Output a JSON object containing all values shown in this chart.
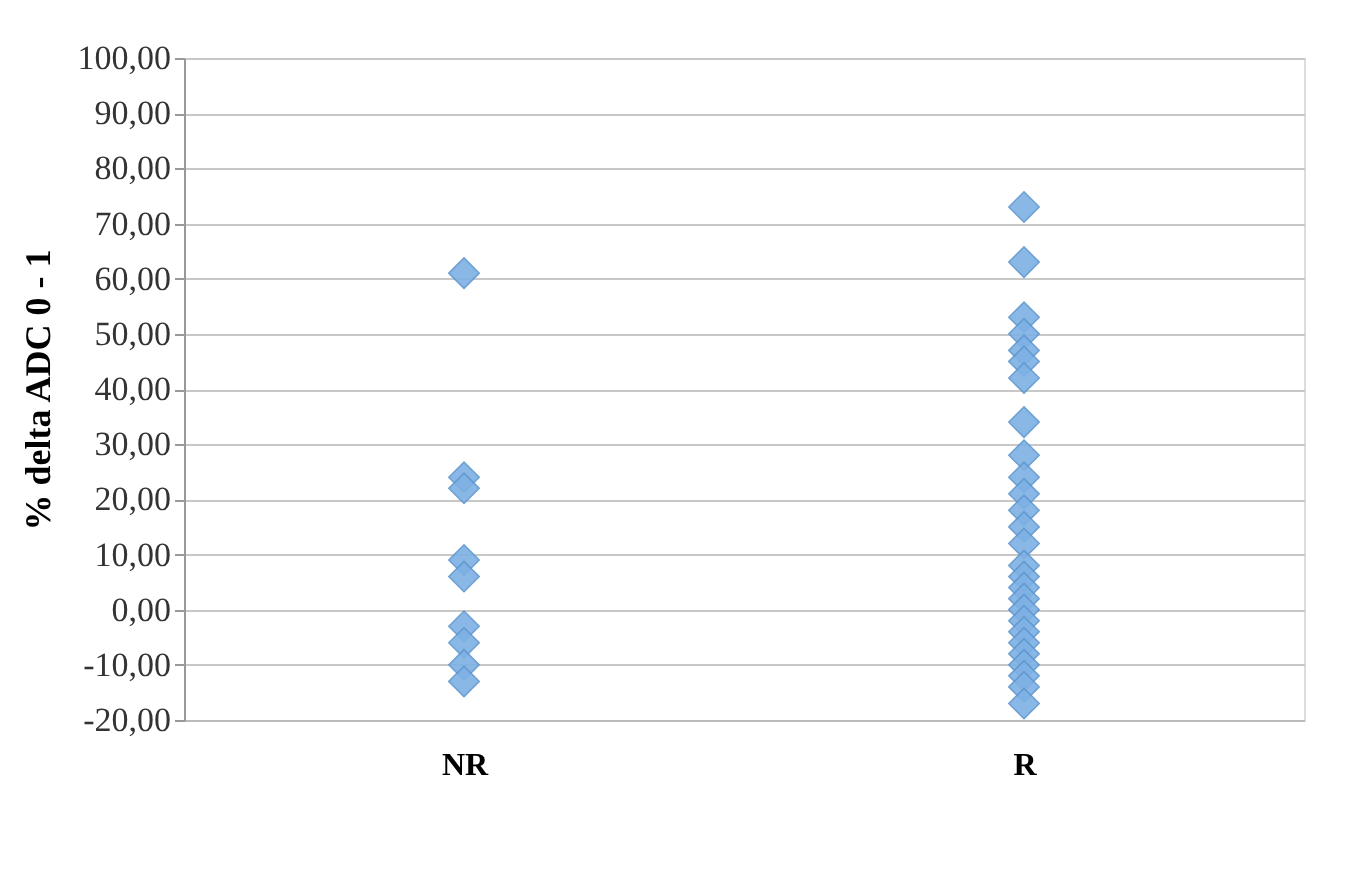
{
  "chart_data": {
    "type": "scatter",
    "ylabel": "% delta ADC 0 - 1",
    "categories": [
      "NR",
      "R"
    ],
    "series": [
      {
        "color": "#7eb1e4",
        "x": [
          "NR",
          "NR",
          "NR",
          "NR",
          "NR",
          "NR",
          "NR",
          "NR",
          "NR"
        ],
        "values": [
          61,
          24,
          22,
          9,
          6,
          -3,
          -6,
          -10,
          -13
        ]
      },
      {
        "color": "#7eb1e4",
        "x": [
          "R",
          "R",
          "R",
          "R",
          "R",
          "R",
          "R",
          "R",
          "R",
          "R",
          "R",
          "R",
          "R",
          "R",
          "R",
          "R",
          "R",
          "R",
          "R",
          "R",
          "R",
          "R",
          "R",
          "R",
          "R",
          "R",
          "R"
        ],
        "values": [
          73,
          63,
          53,
          50,
          47,
          45,
          42,
          34,
          28,
          24,
          21,
          18,
          15,
          12,
          8,
          6,
          4,
          2,
          0,
          -2,
          -4,
          -6,
          -8,
          -10,
          -12,
          -14,
          -17
        ]
      }
    ],
    "ylim": [
      -20,
      100
    ],
    "yticks": [
      {
        "value": -20,
        "label": "-20,00"
      },
      {
        "value": -10,
        "label": "-10,00"
      },
      {
        "value": 0,
        "label": "0,00"
      },
      {
        "value": 10,
        "label": "10,00"
      },
      {
        "value": 20,
        "label": "20,00"
      },
      {
        "value": 30,
        "label": "30,00"
      },
      {
        "value": 40,
        "label": "40,00"
      },
      {
        "value": 50,
        "label": "50,00"
      },
      {
        "value": 60,
        "label": "60,00"
      },
      {
        "value": 70,
        "label": "70,00"
      },
      {
        "value": 80,
        "label": "80,00"
      },
      {
        "value": 90,
        "label": "90,00"
      },
      {
        "value": 100,
        "label": "100,00"
      }
    ],
    "grid": "y",
    "marker": "diamond",
    "legend": false
  }
}
